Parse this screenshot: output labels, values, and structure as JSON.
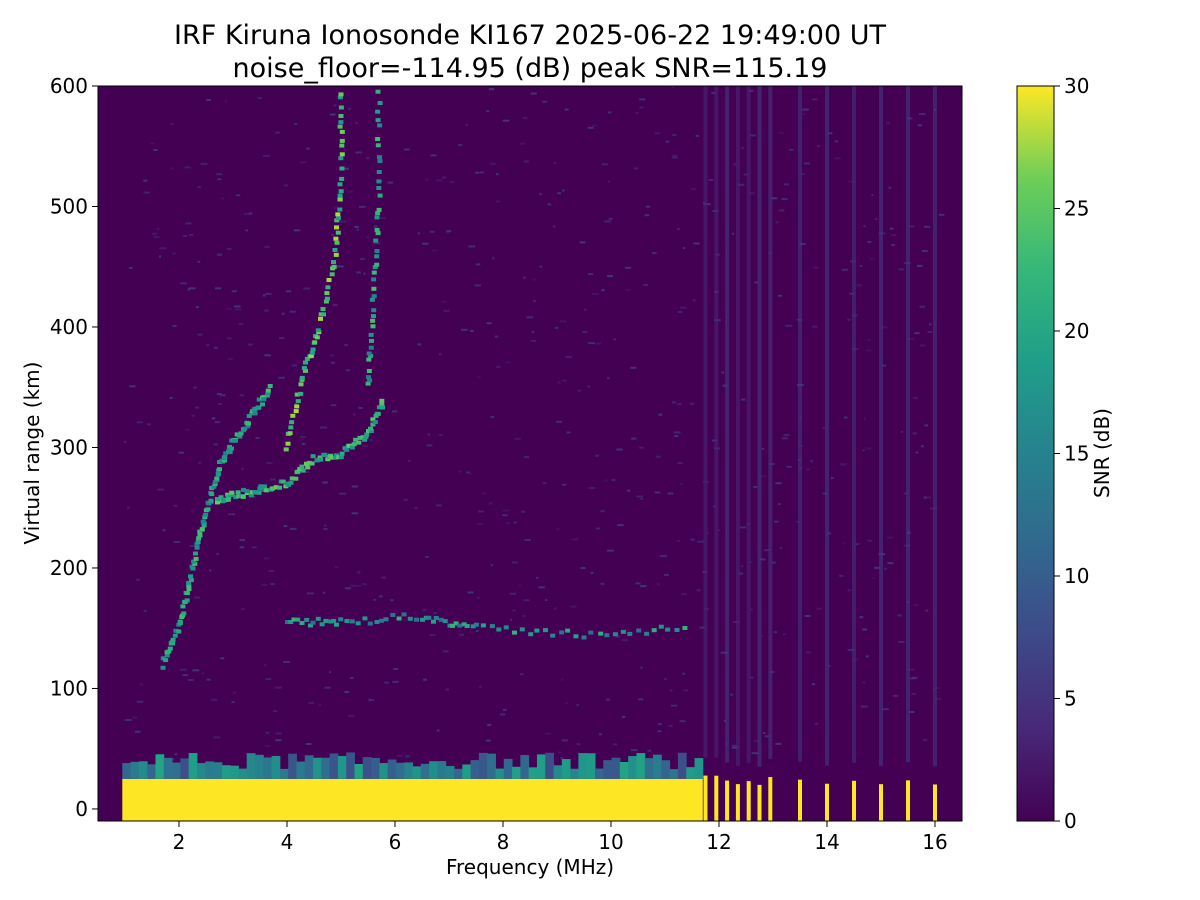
{
  "chart_data": {
    "type": "heatmap",
    "title": "IRF Kiruna Ionosonde KI167 2025-06-22 19:49:00  UT",
    "subtitle": "noise_floor=-114.95 (dB) peak SNR=115.19",
    "xlabel": "Frequency (MHz)",
    "ylabel": "Virtual range (km)",
    "xlim": [
      0.5,
      16.5
    ],
    "ylim": [
      -10,
      600
    ],
    "x_ticks": [
      2,
      4,
      6,
      8,
      10,
      12,
      14,
      16
    ],
    "y_ticks": [
      0,
      100,
      200,
      300,
      400,
      500,
      600
    ],
    "colormap": "viridis",
    "colorbar": {
      "label": "SNR (dB)",
      "range": [
        0,
        30
      ],
      "ticks": [
        0,
        5,
        10,
        15,
        20,
        25,
        30
      ]
    },
    "colors": {
      "background": "#440154",
      "saturated": "#fde725"
    },
    "features": {
      "ground_echo": {
        "x_range": [
          0.95,
          11.7
        ],
        "y_top_km": 25,
        "snr_db": 30
      },
      "high_freq_lines": [
        11.75,
        11.95,
        12.15,
        12.35,
        12.55,
        12.75,
        12.95,
        13.5,
        14.0,
        14.5,
        15.0,
        15.5,
        16.0
      ],
      "e_layer_trace": [
        [
          4.0,
          155
        ],
        [
          5.0,
          155
        ],
        [
          6.5,
          160
        ],
        [
          7.5,
          150
        ],
        [
          9.5,
          145
        ],
        [
          11.5,
          150
        ]
      ],
      "f_layer_o_trace": [
        [
          2.7,
          255
        ],
        [
          3.0,
          260
        ],
        [
          3.5,
          265
        ],
        [
          4.0,
          270
        ],
        [
          4.5,
          290
        ],
        [
          5.0,
          295
        ],
        [
          5.5,
          310
        ],
        [
          5.8,
          340
        ]
      ],
      "f_layer_cusp": [
        [
          4.0,
          300
        ],
        [
          4.3,
          360
        ],
        [
          4.6,
          400
        ],
        [
          4.9,
          460
        ],
        [
          5.0,
          520
        ],
        [
          5.0,
          600
        ]
      ],
      "f_layer_x_trace": [
        [
          5.5,
          350
        ],
        [
          5.6,
          420
        ],
        [
          5.7,
          500
        ],
        [
          5.7,
          600
        ]
      ],
      "low_branch": [
        [
          1.7,
          120
        ],
        [
          2.0,
          150
        ],
        [
          2.2,
          190
        ],
        [
          2.4,
          230
        ],
        [
          2.6,
          260
        ],
        [
          2.8,
          290
        ],
        [
          3.1,
          310
        ],
        [
          3.4,
          330
        ],
        [
          3.7,
          350
        ]
      ]
    }
  }
}
